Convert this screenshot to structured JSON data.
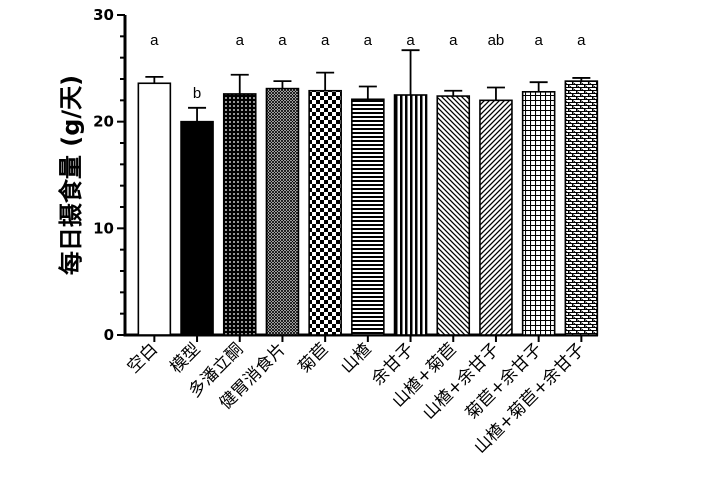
{
  "chart_data": {
    "type": "bar",
    "title": "",
    "xlabel": "",
    "ylabel": "每日摄食量 (g/天)",
    "ylim": [
      0,
      30
    ],
    "yticks": [
      0,
      10,
      20,
      30
    ],
    "grid": false,
    "legend": "none",
    "categories": [
      "空白",
      "模型",
      "多潘立酮",
      "健胃消食片",
      "菊苣",
      "山楂",
      "余甘子",
      "山楂+菊苣",
      "山楂+余甘子",
      "菊苣+余甘子",
      "山楂+菊苣+余甘子"
    ],
    "values": [
      23.6,
      20.0,
      22.6,
      23.1,
      22.9,
      22.1,
      22.5,
      22.4,
      22.0,
      22.8,
      23.8
    ],
    "errors": [
      0.6,
      1.3,
      1.8,
      0.7,
      1.7,
      1.2,
      4.2,
      0.5,
      1.2,
      0.9,
      0.3
    ],
    "significance": [
      "a",
      "b",
      "a",
      "a",
      "a",
      "a",
      "a",
      "a",
      "ab",
      "a",
      "a"
    ],
    "fills": [
      "white",
      "black",
      "dots",
      "fine-cross",
      "checker",
      "horizontal",
      "vertical",
      "diagonal-down",
      "diagonal-up",
      "grid",
      "brick"
    ]
  }
}
